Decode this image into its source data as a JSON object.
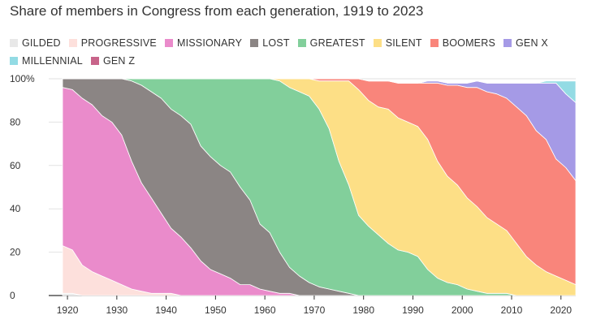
{
  "chart_data": {
    "type": "area",
    "title": "Share of members in Congress from each generation, 1919 to 2023",
    "xlabel": "",
    "ylabel": "",
    "xlim": [
      1919,
      2023
    ],
    "ylim": [
      0,
      100
    ],
    "stacked": true,
    "normalized": true,
    "grid": true,
    "legend_position": "top-left",
    "x_ticks": [
      1920,
      1930,
      1940,
      1950,
      1960,
      1970,
      1980,
      1990,
      2000,
      2010,
      2020
    ],
    "y_ticks": [
      0,
      20,
      40,
      60,
      80,
      100
    ],
    "y_tick_labels": [
      "0",
      "20",
      "40",
      "60",
      "80",
      "100%"
    ],
    "x": [
      1919,
      1921,
      1923,
      1925,
      1927,
      1929,
      1931,
      1933,
      1935,
      1937,
      1939,
      1941,
      1943,
      1945,
      1947,
      1949,
      1951,
      1953,
      1955,
      1957,
      1959,
      1961,
      1963,
      1965,
      1967,
      1969,
      1971,
      1973,
      1975,
      1977,
      1979,
      1981,
      1983,
      1985,
      1987,
      1989,
      1991,
      1993,
      1995,
      1997,
      1999,
      2001,
      2003,
      2005,
      2007,
      2009,
      2011,
      2013,
      2015,
      2017,
      2019,
      2021,
      2023
    ],
    "series": [
      {
        "name": "GILDED",
        "color": "#e8e8e8",
        "values": [
          1,
          1,
          0,
          0,
          0,
          0,
          0,
          0,
          0,
          0,
          0,
          0,
          0,
          0,
          0,
          0,
          0,
          0,
          0,
          0,
          0,
          0,
          0,
          0,
          0,
          0,
          0,
          0,
          0,
          0,
          0,
          0,
          0,
          0,
          0,
          0,
          0,
          0,
          0,
          0,
          0,
          0,
          0,
          0,
          0,
          0,
          0,
          0,
          0,
          0,
          0,
          0,
          0
        ]
      },
      {
        "name": "PROGRESSIVE",
        "color": "#fde0dc",
        "values": [
          22,
          20,
          14,
          11,
          9,
          7,
          5,
          3,
          2,
          1,
          1,
          1,
          0,
          0,
          0,
          0,
          0,
          0,
          0,
          0,
          0,
          0,
          0,
          0,
          0,
          0,
          0,
          0,
          0,
          0,
          0,
          0,
          0,
          0,
          0,
          0,
          0,
          0,
          0,
          0,
          0,
          0,
          0,
          0,
          0,
          0,
          0,
          0,
          0,
          0,
          0,
          0,
          0
        ]
      },
      {
        "name": "MISSIONARY",
        "color": "#ea8bcb",
        "values": [
          73,
          74,
          77,
          77,
          74,
          73,
          69,
          59,
          50,
          44,
          37,
          30,
          27,
          22,
          16,
          12,
          10,
          8,
          5,
          5,
          3,
          2,
          1,
          1,
          0,
          0,
          0,
          0,
          0,
          0,
          0,
          0,
          0,
          0,
          0,
          0,
          0,
          0,
          0,
          0,
          0,
          0,
          0,
          0,
          0,
          0,
          0,
          0,
          0,
          0,
          0,
          0,
          0
        ]
      },
      {
        "name": "LOST",
        "color": "#8b8584",
        "values": [
          4,
          5,
          9,
          12,
          17,
          20,
          26,
          37,
          45,
          49,
          53,
          55,
          56,
          57,
          53,
          52,
          50,
          49,
          45,
          39,
          30,
          27,
          19,
          12,
          9,
          6,
          4,
          3,
          2,
          1,
          0,
          0,
          0,
          0,
          0,
          0,
          0,
          0,
          0,
          0,
          0,
          0,
          0,
          0,
          0,
          0,
          0,
          0,
          0,
          0,
          0,
          0,
          0
        ]
      },
      {
        "name": "GREATEST",
        "color": "#82cf9b",
        "values": [
          0,
          0,
          0,
          0,
          0,
          0,
          0,
          1,
          3,
          6,
          9,
          14,
          17,
          21,
          31,
          36,
          40,
          43,
          50,
          56,
          67,
          71,
          79,
          83,
          85,
          86,
          82,
          74,
          60,
          50,
          37,
          32,
          28,
          24,
          21,
          20,
          18,
          12,
          8,
          6,
          5,
          3,
          2,
          1,
          1,
          1,
          0,
          0,
          0,
          0,
          0,
          0,
          0
        ]
      },
      {
        "name": "SILENT",
        "color": "#fddf86",
        "values": [
          0,
          0,
          0,
          0,
          0,
          0,
          0,
          0,
          0,
          0,
          0,
          0,
          0,
          0,
          0,
          0,
          0,
          0,
          0,
          0,
          0,
          0,
          1,
          4,
          6,
          8,
          13,
          22,
          37,
          48,
          58,
          58,
          59,
          62,
          61,
          60,
          60,
          60,
          54,
          49,
          46,
          42,
          39,
          35,
          32,
          29,
          24,
          18,
          14,
          11,
          9,
          7,
          5
        ]
      },
      {
        "name": "BOOMERS",
        "color": "#f9857b",
        "values": [
          0,
          0,
          0,
          0,
          0,
          0,
          0,
          0,
          0,
          0,
          0,
          0,
          0,
          0,
          0,
          0,
          0,
          0,
          0,
          0,
          0,
          0,
          0,
          0,
          0,
          0,
          1,
          1,
          1,
          1,
          5,
          9,
          12,
          13,
          16,
          18,
          20,
          26,
          36,
          42,
          46,
          51,
          55,
          58,
          60,
          61,
          63,
          65,
          62,
          61,
          54,
          52,
          48
        ]
      },
      {
        "name": "GEN X",
        "color": "#a59ae6",
        "values": [
          0,
          0,
          0,
          0,
          0,
          0,
          0,
          0,
          0,
          0,
          0,
          0,
          0,
          0,
          0,
          0,
          0,
          0,
          0,
          0,
          0,
          0,
          0,
          0,
          0,
          0,
          0,
          0,
          0,
          0,
          0,
          0,
          0,
          0,
          0,
          0,
          0,
          1,
          1,
          1,
          1,
          2,
          3,
          4,
          5,
          7,
          11,
          15,
          22,
          26,
          35,
          34,
          36
        ]
      },
      {
        "name": "MILLENNIAL",
        "color": "#93dbe4",
        "values": [
          0,
          0,
          0,
          0,
          0,
          0,
          0,
          0,
          0,
          0,
          0,
          0,
          0,
          0,
          0,
          0,
          0,
          0,
          0,
          0,
          0,
          0,
          0,
          0,
          0,
          0,
          0,
          0,
          0,
          0,
          0,
          0,
          0,
          0,
          0,
          0,
          0,
          0,
          0,
          0,
          0,
          0,
          0,
          0,
          0,
          0,
          0,
          0,
          0,
          1,
          1,
          6,
          10
        ]
      },
      {
        "name": "GEN Z",
        "color": "#c8648a",
        "values": [
          0,
          0,
          0,
          0,
          0,
          0,
          0,
          0,
          0,
          0,
          0,
          0,
          0,
          0,
          0,
          0,
          0,
          0,
          0,
          0,
          0,
          0,
          0,
          0,
          0,
          0,
          0,
          0,
          0,
          0,
          0,
          0,
          0,
          0,
          0,
          0,
          0,
          0,
          0,
          0,
          0,
          0,
          0,
          0,
          0,
          0,
          0,
          0,
          0,
          0,
          0,
          0,
          0.2
        ]
      }
    ]
  }
}
